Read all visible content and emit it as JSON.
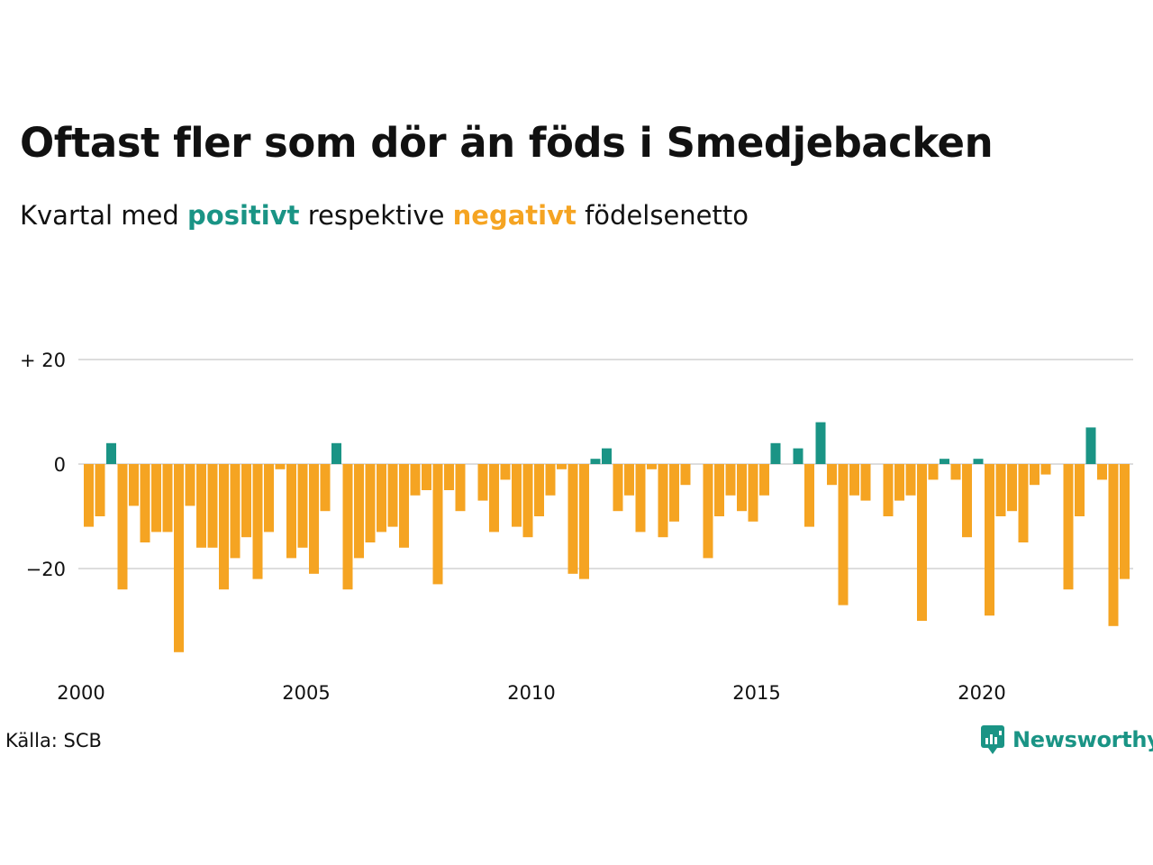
{
  "title": "Oftast fler som dör än föds i Smedjebacken",
  "subtitle": {
    "prefix": "Kvartal med ",
    "positive_word": "positivt",
    "middle": " respektive ",
    "negative_word": "negativt",
    "suffix": " födelsenetto"
  },
  "source": "Källa: SCB",
  "brand": "Newsworthy",
  "colors": {
    "positive": "#1a9485",
    "negative": "#f5a422",
    "grid": "#dddddd"
  },
  "chart_data": {
    "type": "bar",
    "x_start": "2000 Q1",
    "periods_per_year": 4,
    "y_ticks": [
      {
        "value": 20,
        "label": "+ 20"
      },
      {
        "value": 0,
        "label": "0"
      },
      {
        "value": -20,
        "label": "−20"
      }
    ],
    "x_ticks": [
      "2000",
      "2005",
      "2010",
      "2015",
      "2020"
    ],
    "ylim": [
      -38,
      28
    ],
    "values": [
      -12,
      -10,
      4,
      -24,
      -8,
      -15,
      -13,
      -13,
      -36,
      -8,
      -16,
      -16,
      -24,
      -18,
      -14,
      -22,
      -13,
      -1,
      -18,
      -16,
      -21,
      -9,
      4,
      -24,
      -18,
      -15,
      -13,
      -12,
      -16,
      -6,
      -5,
      -23,
      -5,
      -9,
      0,
      -7,
      -13,
      -3,
      -12,
      -14,
      -10,
      -6,
      -1,
      -21,
      -22,
      1,
      3,
      -9,
      -6,
      -13,
      -1,
      -14,
      -11,
      -4,
      0,
      -18,
      -10,
      -6,
      -9,
      -11,
      -6,
      4,
      0,
      3,
      -12,
      8,
      -4,
      -27,
      -6,
      -7,
      0,
      -10,
      -7,
      -6,
      -30,
      -3,
      1,
      -3,
      -14,
      1,
      -29,
      -10,
      -9,
      -15,
      -4,
      -2,
      0,
      -24,
      -10,
      7,
      -3,
      -31,
      -22
    ]
  }
}
